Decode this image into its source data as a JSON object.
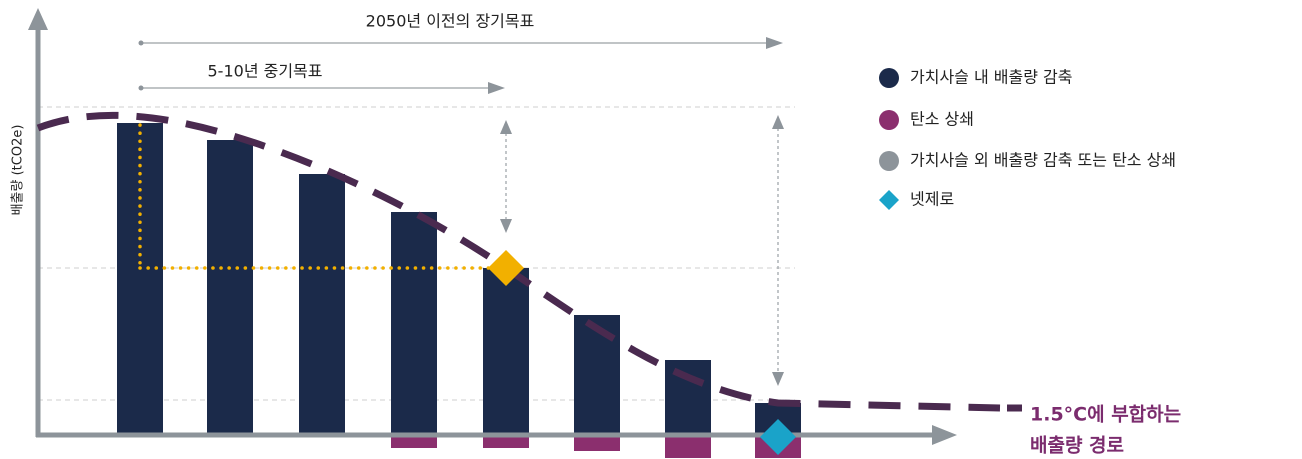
{
  "header": {
    "long_term": "2050년 이전의 장기목표",
    "mid_term": "5-10년 중기목표"
  },
  "axis": {
    "y_label": "배출량 (tCO2e)"
  },
  "legend": {
    "items": [
      "가치사슬 내 배출량 감축",
      "탄소 상쇄",
      "가치사슬 외 배출량 감축 또는 탄소 상쇄",
      "넷제로"
    ]
  },
  "pathway": {
    "label_line1": "1.5°C에 부합하는",
    "label_line2": "배출량 경로"
  }
}
